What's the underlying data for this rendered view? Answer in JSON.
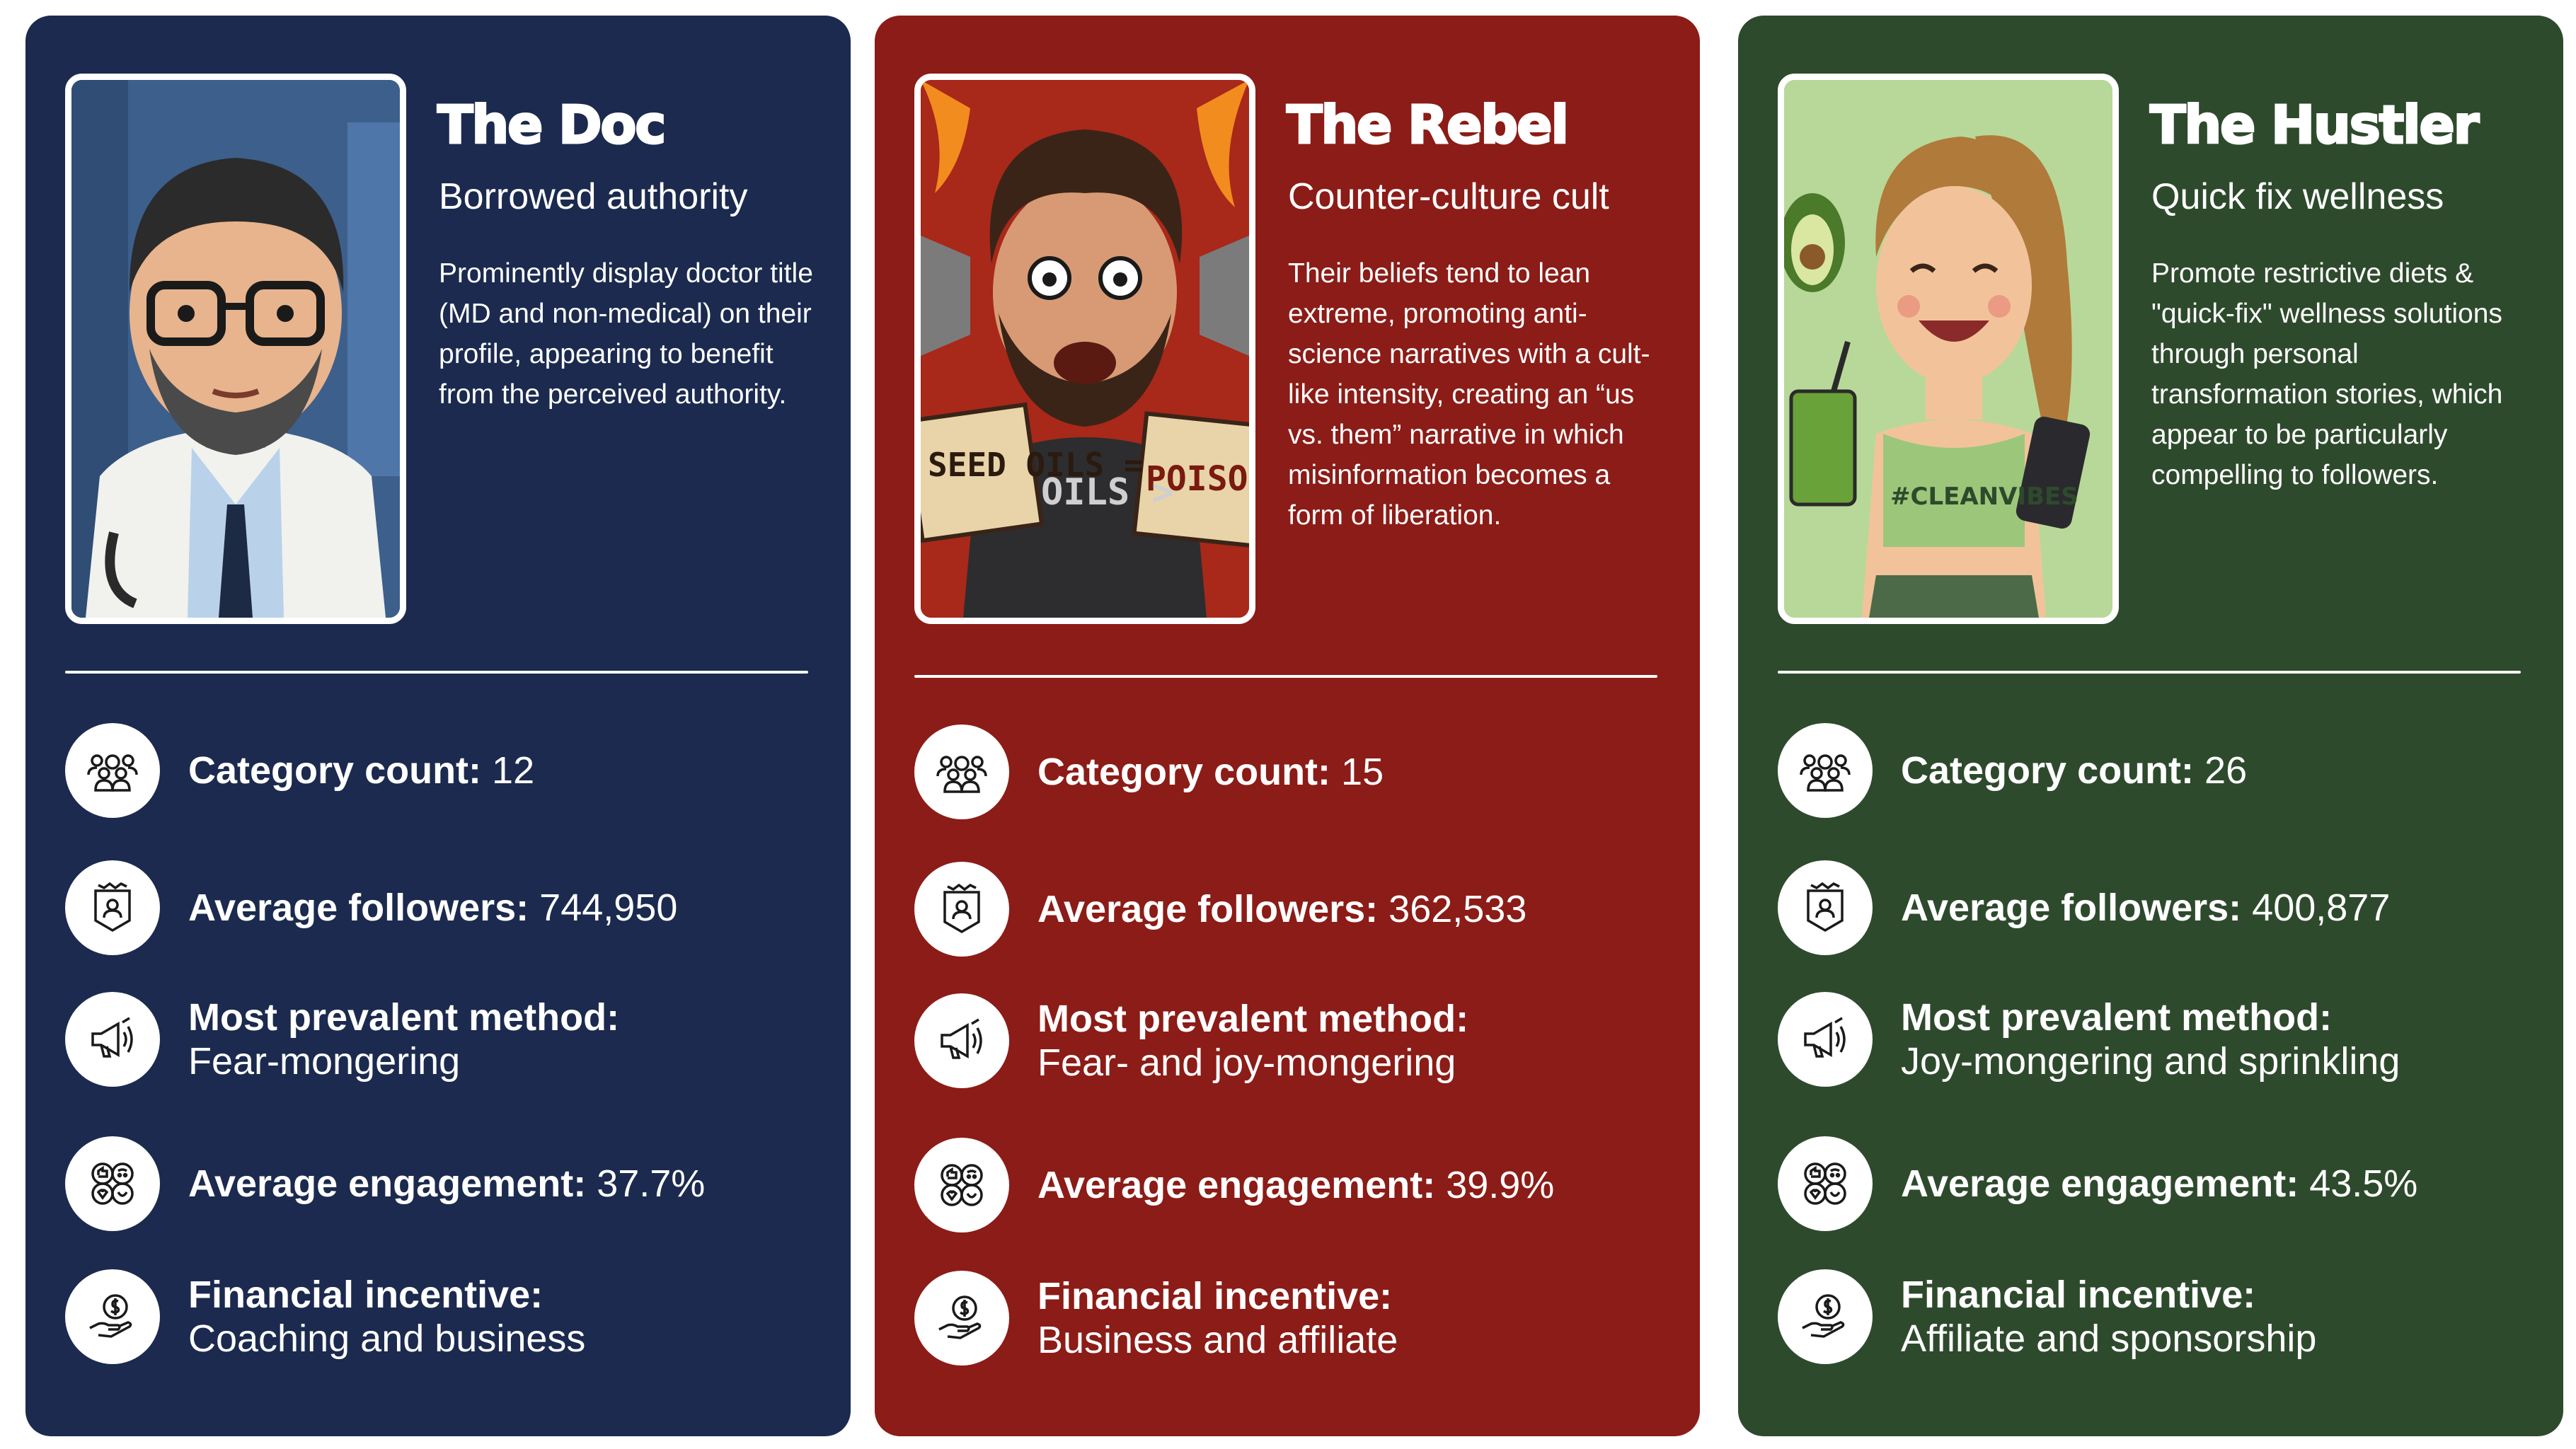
{
  "cards": [
    {
      "title": "The Doc",
      "subtitle": "Borrowed authority",
      "description": "Prominently display doctor title (MD and non-medical) on their profile, appearing to benefit from the perceived authority.",
      "background": "#1b2a4e",
      "portrait_alt": "cartoon doctor with glasses, beard and stethoscope",
      "stats": {
        "category_label": "Category count:",
        "category_value": " 12",
        "followers_label": "Average followers:",
        "followers_value": " 744,950",
        "method_label": "Most prevalent method:",
        "method_value": "Fear-mongering",
        "engagement_label": "Average engagement:",
        "engagement_value": " 37.7%",
        "financial_label": "Financial incentive:",
        "financial_value": "Coaching and business"
      }
    },
    {
      "title": "The Rebel",
      "subtitle": "Counter-culture cult",
      "description": "Their beliefs tend to lean extreme, promoting anti-science narratives with a cult-like intensity, creating an “us vs. them” narrative in which misinformation becomes a form of liberation.",
      "background": "#8b1c17",
      "portrait_alt": "angry man with megaphones and signs",
      "sign_left": "SEED OILS =",
      "sign_right": "POISON",
      "shirt_text": "OILS >",
      "stats": {
        "category_label": "Category count:",
        "category_value": " 15",
        "followers_label": "Average followers:",
        "followers_value": " 362,533",
        "method_label": "Most prevalent method:",
        "method_value": "Fear- and joy-mongering",
        "engagement_label": "Average engagement:",
        "engagement_value": " 39.9%",
        "financial_label": "Financial incentive:",
        "financial_value": "Business and affiliate"
      }
    },
    {
      "title": "The Hustler",
      "subtitle": "Quick fix wellness",
      "description": "Promote restrictive diets & \"quick-fix\" wellness solutions through personal transformation stories, which appear to be  particularly compelling to followers.",
      "background": "#2e4a2d",
      "portrait_alt": "smiling woman holding green smoothie and phone",
      "shirt_text": "#CLEANVIBES",
      "stats": {
        "category_label": "Category count:",
        "category_value": " 26",
        "followers_label": "Average followers:",
        "followers_value": " 400,877",
        "method_label": "Most prevalent method:",
        "method_value": "Joy-mongering and sprinkling",
        "engagement_label": "Average engagement:",
        "engagement_value": " 43.5%",
        "financial_label": "Financial incentive:",
        "financial_value": "Affiliate and sponsorship"
      }
    }
  ],
  "icons": {
    "category": "group-icon",
    "followers": "profile-badge-icon",
    "method": "megaphone-icon",
    "engagement": "reactions-icon",
    "financial": "money-hand-icon"
  }
}
